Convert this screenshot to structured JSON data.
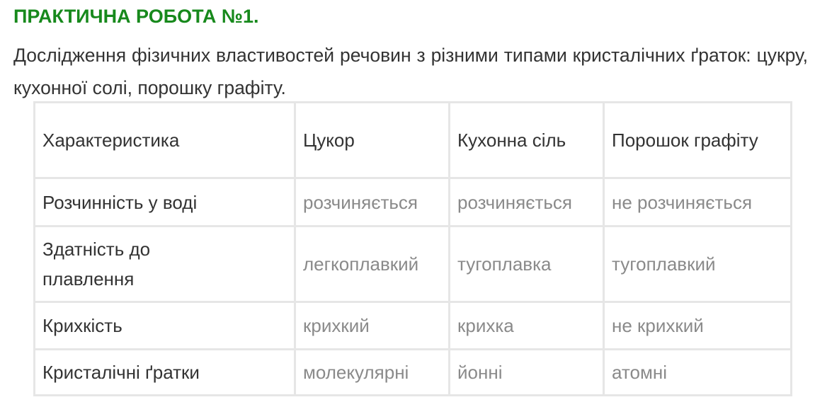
{
  "title": "ПРАКТИЧНА РОБОТА №1.",
  "intro": "Дослідження фізичних властивостей речовин з різними типами кристалічних ґраток: цукру, кухонної солі, порошку графіту.",
  "colors": {
    "title": "#17891c",
    "text": "#333333",
    "value": "#8a8a8a",
    "border": "#e6e6e6"
  },
  "table": {
    "headers": [
      "Характеристика",
      "Цукор",
      "Кухонна сіль",
      "Порошок графіту"
    ],
    "rows": [
      [
        "Розчинність у воді",
        "розчиняється",
        "розчиняється",
        "не розчиняється"
      ],
      [
        "Здатність до плавлення",
        "легкоплавкий",
        "тугоплавка",
        "тугоплавкий"
      ],
      [
        "Крихкість",
        "крихкий",
        "крихка",
        "не крихкий"
      ],
      [
        "Кристалічні ґратки",
        "молекулярні",
        "йонні",
        "атомні"
      ]
    ]
  }
}
